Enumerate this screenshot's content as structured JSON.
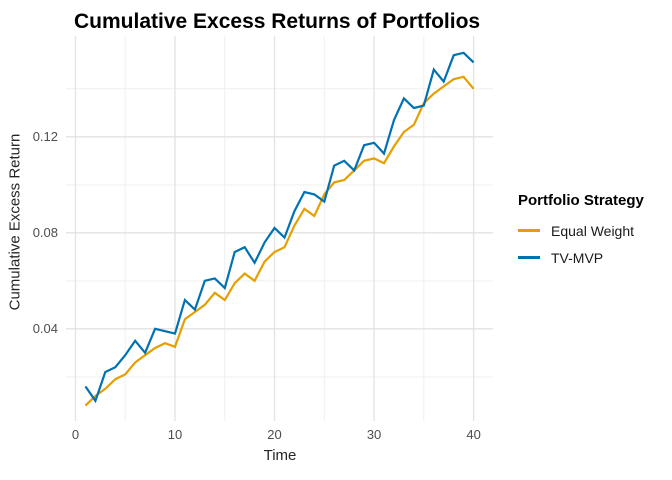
{
  "chart": {
    "title": "Cumulative Excess Returns of Portfolios",
    "x_axis_label": "Time",
    "y_axis_label": "Cumulative Excess Return"
  },
  "legend": {
    "title": "Portfolio Strategy",
    "items": [
      {
        "label": "Equal Weight",
        "color": "#E69F00"
      },
      {
        "label": "TV-MVP",
        "color": "#0072B2"
      }
    ]
  },
  "chart_data": {
    "type": "line",
    "title": "Cumulative Excess Returns of Portfolios",
    "xlabel": "Time",
    "ylabel": "Cumulative Excess Return",
    "legend_title": "Portfolio Strategy",
    "legend_position": "right",
    "grid": {
      "major_color": "#e3e3e3",
      "minor_color": "#efefef"
    },
    "x": [
      1,
      2,
      3,
      4,
      5,
      6,
      7,
      8,
      9,
      10,
      11,
      12,
      13,
      14,
      15,
      16,
      17,
      18,
      19,
      20,
      21,
      22,
      23,
      24,
      25,
      26,
      27,
      28,
      29,
      30,
      31,
      32,
      33,
      34,
      35,
      36,
      37,
      38,
      39,
      40
    ],
    "series": [
      {
        "name": "Equal Weight",
        "color": "#E69F00",
        "values": [
          0.008,
          0.012,
          0.015,
          0.019,
          0.021,
          0.026,
          0.029,
          0.032,
          0.034,
          0.0325,
          0.044,
          0.047,
          0.05,
          0.055,
          0.052,
          0.059,
          0.063,
          0.06,
          0.068,
          0.072,
          0.074,
          0.083,
          0.09,
          0.087,
          0.096,
          0.101,
          0.102,
          0.106,
          0.11,
          0.111,
          0.109,
          0.116,
          0.122,
          0.125,
          0.134,
          0.138,
          0.141,
          0.144,
          0.145,
          0.14
        ]
      },
      {
        "name": "TV-MVP",
        "color": "#0072B2",
        "values": [
          0.016,
          0.01,
          0.022,
          0.024,
          0.029,
          0.035,
          0.03,
          0.04,
          0.039,
          0.038,
          0.052,
          0.048,
          0.06,
          0.061,
          0.057,
          0.072,
          0.074,
          0.0675,
          0.076,
          0.082,
          0.078,
          0.089,
          0.097,
          0.096,
          0.093,
          0.108,
          0.11,
          0.106,
          0.1165,
          0.1175,
          0.113,
          0.127,
          0.136,
          0.132,
          0.133,
          0.148,
          0.143,
          0.154,
          0.155,
          0.151
        ]
      }
    ],
    "x_ticks": {
      "values": [
        0,
        10,
        20,
        30,
        40
      ],
      "labels": [
        "0",
        "10",
        "20",
        "30",
        "40"
      ]
    },
    "y_ticks": {
      "values": [
        0.04,
        0.08,
        0.12
      ],
      "labels": [
        "0.04",
        "0.08",
        "0.12"
      ]
    },
    "x_minor": [
      5,
      15,
      25,
      35
    ],
    "y_minor": [
      0.02,
      0.06,
      0.1,
      0.14
    ],
    "xlim": [
      -0.95,
      41.95
    ],
    "ylim": [
      0.0016,
      0.162
    ]
  }
}
